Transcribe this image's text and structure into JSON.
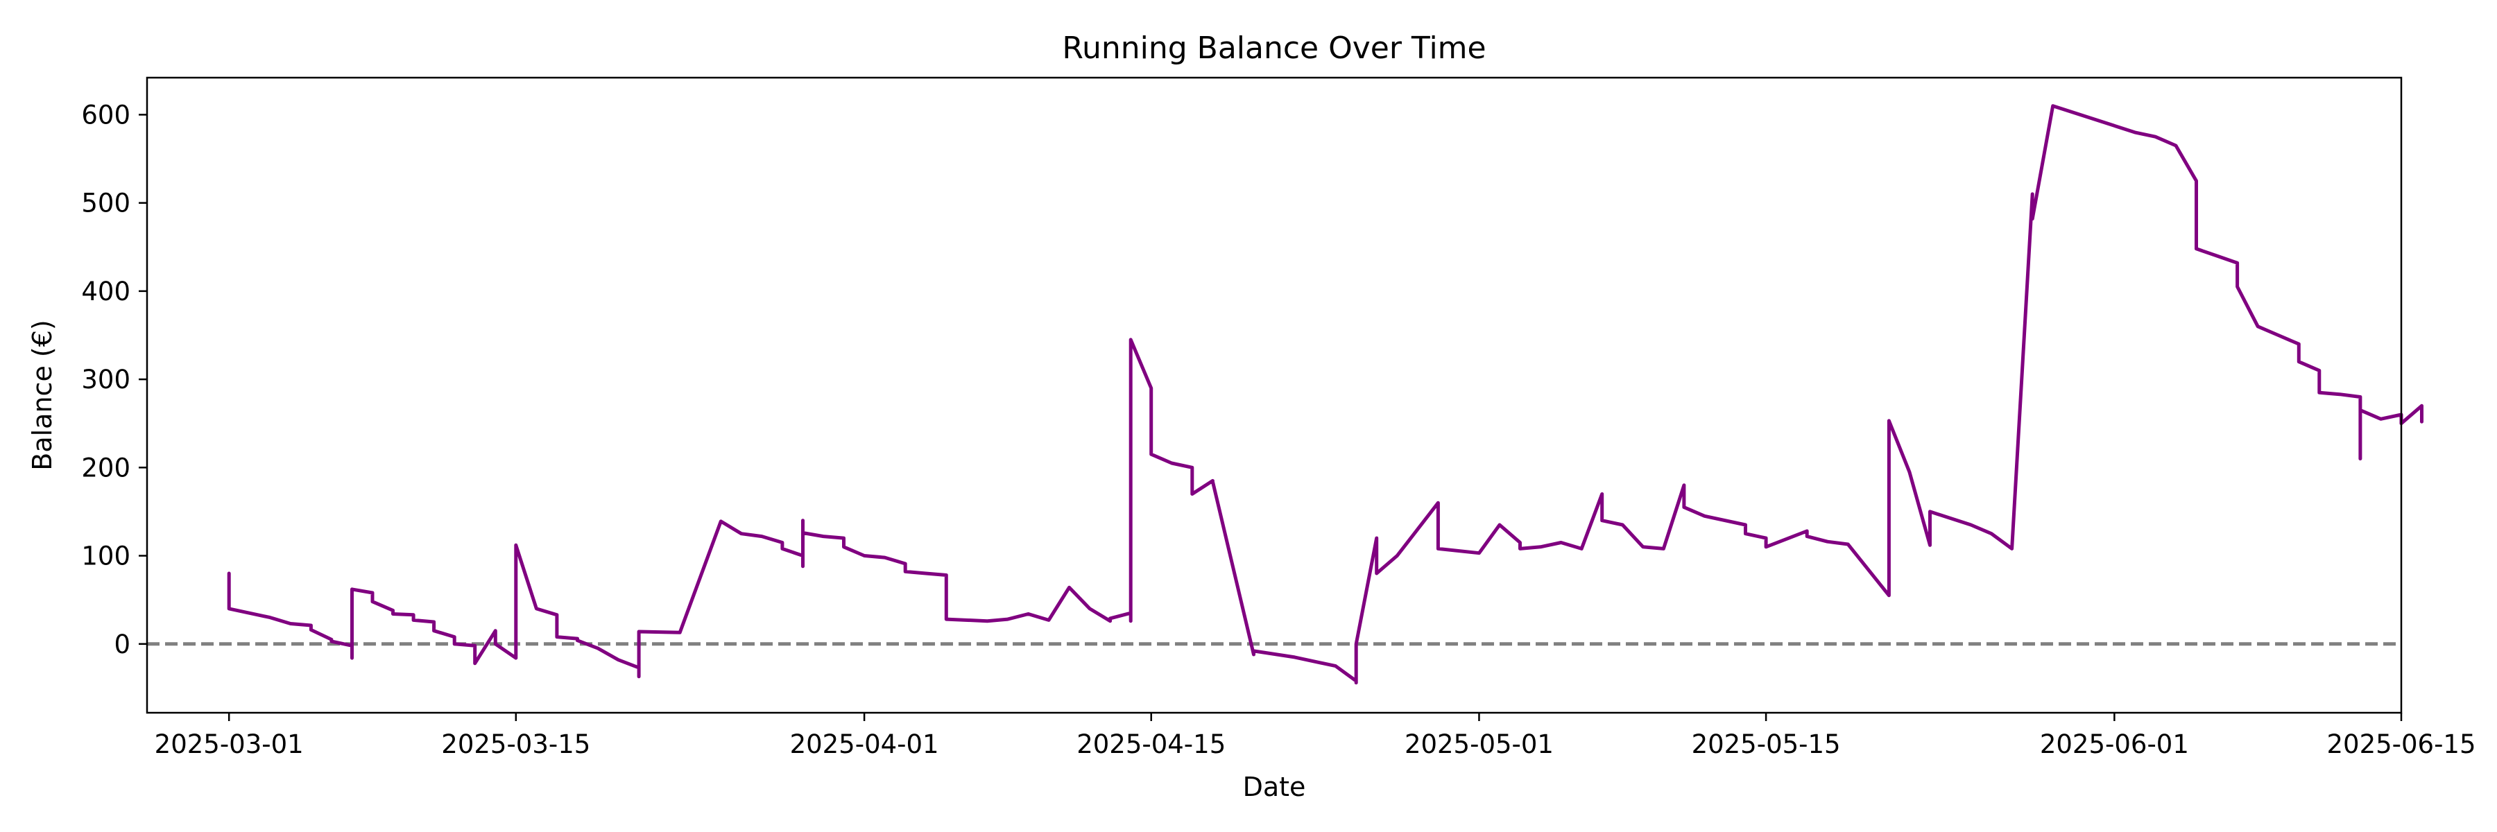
{
  "chart_data": {
    "type": "line",
    "title": "Running Balance Over Time",
    "xlabel": "Date",
    "ylabel": "Balance (€)",
    "x_ticks": [
      "2025-03-01",
      "2025-03-15",
      "2025-04-01",
      "2025-04-15",
      "2025-05-01",
      "2025-05-15",
      "2025-06-01",
      "2025-06-15"
    ],
    "y_ticks": [
      0,
      100,
      200,
      300,
      400,
      500,
      600
    ],
    "xlim": [
      "2025-02-25",
      "2025-06-15"
    ],
    "ylim": [
      -78,
      642
    ],
    "grid": false,
    "legend": "none",
    "reference_line": {
      "y": 0,
      "style": "dashed",
      "color": "#808080"
    },
    "series": [
      {
        "color": "#800080",
        "points": [
          [
            "2025-03-01",
            80
          ],
          [
            "2025-03-01",
            40
          ],
          [
            "2025-03-03",
            30
          ],
          [
            "2025-03-04",
            23
          ],
          [
            "2025-03-05",
            21
          ],
          [
            "2025-03-05",
            16
          ],
          [
            "2025-03-06",
            5
          ],
          [
            "2025-03-06",
            3
          ],
          [
            "2025-03-07",
            -2
          ],
          [
            "2025-03-07",
            -15
          ],
          [
            "2025-03-07",
            -16
          ],
          [
            "2025-03-07",
            62
          ],
          [
            "2025-03-08",
            58
          ],
          [
            "2025-03-08",
            48
          ],
          [
            "2025-03-09",
            38
          ],
          [
            "2025-03-09",
            34
          ],
          [
            "2025-03-10",
            33
          ],
          [
            "2025-03-10",
            27
          ],
          [
            "2025-03-11",
            25
          ],
          [
            "2025-03-11",
            15
          ],
          [
            "2025-03-12",
            8
          ],
          [
            "2025-03-12",
            0
          ],
          [
            "2025-03-13",
            -2
          ],
          [
            "2025-03-13",
            -22
          ],
          [
            "2025-03-14",
            15
          ],
          [
            "2025-03-14",
            5
          ],
          [
            "2025-03-14",
            0
          ],
          [
            "2025-03-15",
            -16
          ],
          [
            "2025-03-15",
            112
          ],
          [
            "2025-03-16",
            40
          ],
          [
            "2025-03-17",
            33
          ],
          [
            "2025-03-17",
            8
          ],
          [
            "2025-03-18",
            6
          ],
          [
            "2025-03-18",
            4
          ],
          [
            "2025-03-19",
            -5
          ],
          [
            "2025-03-20",
            -18
          ],
          [
            "2025-03-21",
            -27
          ],
          [
            "2025-03-21",
            -37
          ],
          [
            "2025-03-21",
            -28
          ],
          [
            "2025-03-21",
            14
          ],
          [
            "2025-03-23",
            13
          ],
          [
            "2025-03-25",
            139
          ],
          [
            "2025-03-26",
            125
          ],
          [
            "2025-03-27",
            122
          ],
          [
            "2025-03-28",
            115
          ],
          [
            "2025-03-28",
            108
          ],
          [
            "2025-03-29",
            100
          ],
          [
            "2025-03-29",
            88
          ],
          [
            "2025-03-29",
            140
          ],
          [
            "2025-03-29",
            126
          ],
          [
            "2025-03-30",
            122
          ],
          [
            "2025-03-31",
            120
          ],
          [
            "2025-03-31",
            110
          ],
          [
            "2025-04-01",
            100
          ],
          [
            "2025-04-02",
            98
          ],
          [
            "2025-04-03",
            91
          ],
          [
            "2025-04-03",
            82
          ],
          [
            "2025-04-04",
            80
          ],
          [
            "2025-04-05",
            78
          ],
          [
            "2025-04-05",
            65
          ],
          [
            "2025-04-05",
            28
          ],
          [
            "2025-04-07",
            26
          ],
          [
            "2025-04-08",
            28
          ],
          [
            "2025-04-09",
            34
          ],
          [
            "2025-04-10",
            27
          ],
          [
            "2025-04-11",
            64
          ],
          [
            "2025-04-12",
            40
          ],
          [
            "2025-04-13",
            26
          ],
          [
            "2025-04-13",
            29
          ],
          [
            "2025-04-14",
            35
          ],
          [
            "2025-04-14",
            26
          ],
          [
            "2025-04-14",
            345
          ],
          [
            "2025-04-15",
            290
          ],
          [
            "2025-04-15",
            272
          ],
          [
            "2025-04-15",
            215
          ],
          [
            "2025-04-16",
            205
          ],
          [
            "2025-04-17",
            200
          ],
          [
            "2025-04-17",
            170
          ],
          [
            "2025-04-18",
            185
          ],
          [
            "2025-04-18",
            184
          ],
          [
            "2025-04-20",
            -12
          ],
          [
            "2025-04-20",
            -8
          ],
          [
            "2025-04-22",
            -15
          ],
          [
            "2025-04-24",
            -25
          ],
          [
            "2025-04-25",
            -42
          ],
          [
            "2025-04-25",
            -44
          ],
          [
            "2025-04-25",
            0
          ],
          [
            "2025-04-26",
            120
          ],
          [
            "2025-04-26",
            80
          ],
          [
            "2025-04-27",
            100
          ],
          [
            "2025-04-29",
            160
          ],
          [
            "2025-04-29",
            108
          ],
          [
            "2025-05-01",
            103
          ],
          [
            "2025-05-02",
            135
          ],
          [
            "2025-05-03",
            115
          ],
          [
            "2025-05-03",
            108
          ],
          [
            "2025-05-04",
            110
          ],
          [
            "2025-05-05",
            115
          ],
          [
            "2025-05-06",
            108
          ],
          [
            "2025-05-07",
            170
          ],
          [
            "2025-05-07",
            140
          ],
          [
            "2025-05-08",
            135
          ],
          [
            "2025-05-09",
            110
          ],
          [
            "2025-05-10",
            108
          ],
          [
            "2025-05-11",
            180
          ],
          [
            "2025-05-11",
            155
          ],
          [
            "2025-05-12",
            145
          ],
          [
            "2025-05-14",
            135
          ],
          [
            "2025-05-14",
            125
          ],
          [
            "2025-05-15",
            120
          ],
          [
            "2025-05-15",
            110
          ],
          [
            "2025-05-17",
            128
          ],
          [
            "2025-05-17",
            122
          ],
          [
            "2025-05-18",
            116
          ],
          [
            "2025-05-19",
            113
          ],
          [
            "2025-05-21",
            55
          ],
          [
            "2025-05-21",
            253
          ],
          [
            "2025-05-22",
            195
          ],
          [
            "2025-05-23",
            112
          ],
          [
            "2025-05-23",
            150
          ],
          [
            "2025-05-25",
            135
          ],
          [
            "2025-05-26",
            125
          ],
          [
            "2025-05-27",
            108
          ],
          [
            "2025-05-28",
            510
          ],
          [
            "2025-05-28",
            482
          ],
          [
            "2025-05-29",
            610
          ],
          [
            "2025-06-02",
            580
          ],
          [
            "2025-06-03",
            575
          ],
          [
            "2025-06-04",
            565
          ],
          [
            "2025-06-05",
            525
          ],
          [
            "2025-06-05",
            448
          ],
          [
            "2025-06-06",
            440
          ],
          [
            "2025-06-07",
            432
          ],
          [
            "2025-06-07",
            405
          ],
          [
            "2025-06-08",
            360
          ],
          [
            "2025-06-09",
            350
          ],
          [
            "2025-06-10",
            340
          ],
          [
            "2025-06-10",
            320
          ],
          [
            "2025-06-11",
            310
          ],
          [
            "2025-06-11",
            285
          ],
          [
            "2025-06-12",
            283
          ],
          [
            "2025-06-13",
            280
          ],
          [
            "2025-06-13",
            275
          ],
          [
            "2025-06-13",
            210
          ],
          [
            "2025-06-13",
            265
          ],
          [
            "2025-06-14",
            255
          ],
          [
            "2025-06-15",
            260
          ],
          [
            "2025-06-15",
            250
          ],
          [
            "2025-06-16",
            270
          ],
          [
            "2025-06-16",
            252
          ]
        ]
      }
    ]
  }
}
